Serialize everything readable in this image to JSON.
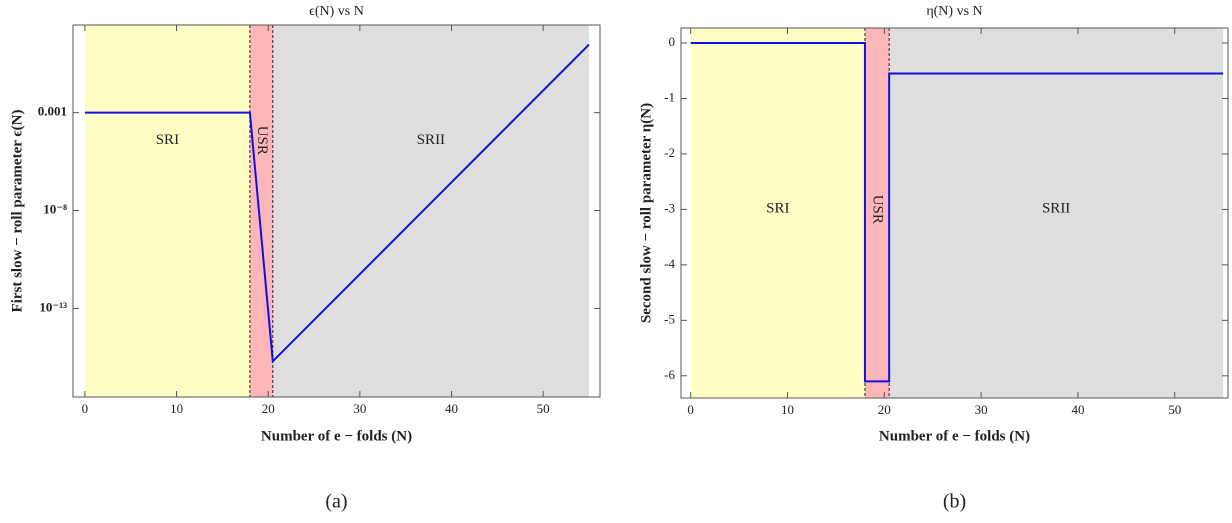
{
  "chart_data": [
    {
      "type": "line",
      "title": "ϵ(N) vs N",
      "xlabel": "Number of e − folds (N)",
      "ylabel": "First slow − roll parameter ϵ(N)",
      "caption": "(a)",
      "log_y": true,
      "xlim": [
        -1.3,
        56.2
      ],
      "ylim": [
        3e-18,
        30
      ],
      "xticks": [
        0,
        10,
        20,
        30,
        40,
        50
      ],
      "yticks": [
        {
          "value": 0.001,
          "label": "0.001"
        },
        {
          "value": 1e-08,
          "label": "10⁻⁸"
        },
        {
          "value": 1e-13,
          "label": "10⁻¹³"
        }
      ],
      "x": [
        0,
        18,
        20.5,
        55
      ],
      "values": [
        0.001,
        0.001,
        2e-16,
        3
      ],
      "color": "#1010e0",
      "regions": [
        {
          "name": "SRI",
          "range": [
            0,
            18
          ],
          "color": "#fefec5"
        },
        {
          "name": "USR",
          "range": [
            18,
            20.5
          ],
          "color": "#ffb6b9"
        },
        {
          "name": "SRII",
          "range": [
            20.5,
            55
          ],
          "color": "#dedede"
        }
      ]
    },
    {
      "type": "line",
      "title": "η(N) vs N",
      "xlabel": "Number of e − folds (N)",
      "ylabel": "Second slow − roll parameter η(N)",
      "caption": "(b)",
      "log_y": false,
      "xlim": [
        -1,
        55.5
      ],
      "ylim": [
        -6.4,
        0.27
      ],
      "xticks": [
        0,
        10,
        20,
        30,
        40,
        50
      ],
      "yticks": [
        0,
        -1,
        -2,
        -3,
        -4,
        -5,
        -6
      ],
      "x": [
        0,
        18,
        18,
        20.5,
        20.5,
        55
      ],
      "values": [
        0,
        0,
        -6.1,
        -6.1,
        -0.55,
        -0.55
      ],
      "color": "#1010e0",
      "regions": [
        {
          "name": "SRI",
          "range": [
            0,
            18
          ],
          "color": "#fefec5"
        },
        {
          "name": "USR",
          "range": [
            18,
            20.5
          ],
          "color": "#ffb6b9"
        },
        {
          "name": "SRII",
          "range": [
            20.5,
            55
          ],
          "color": "#dedede"
        }
      ]
    }
  ]
}
